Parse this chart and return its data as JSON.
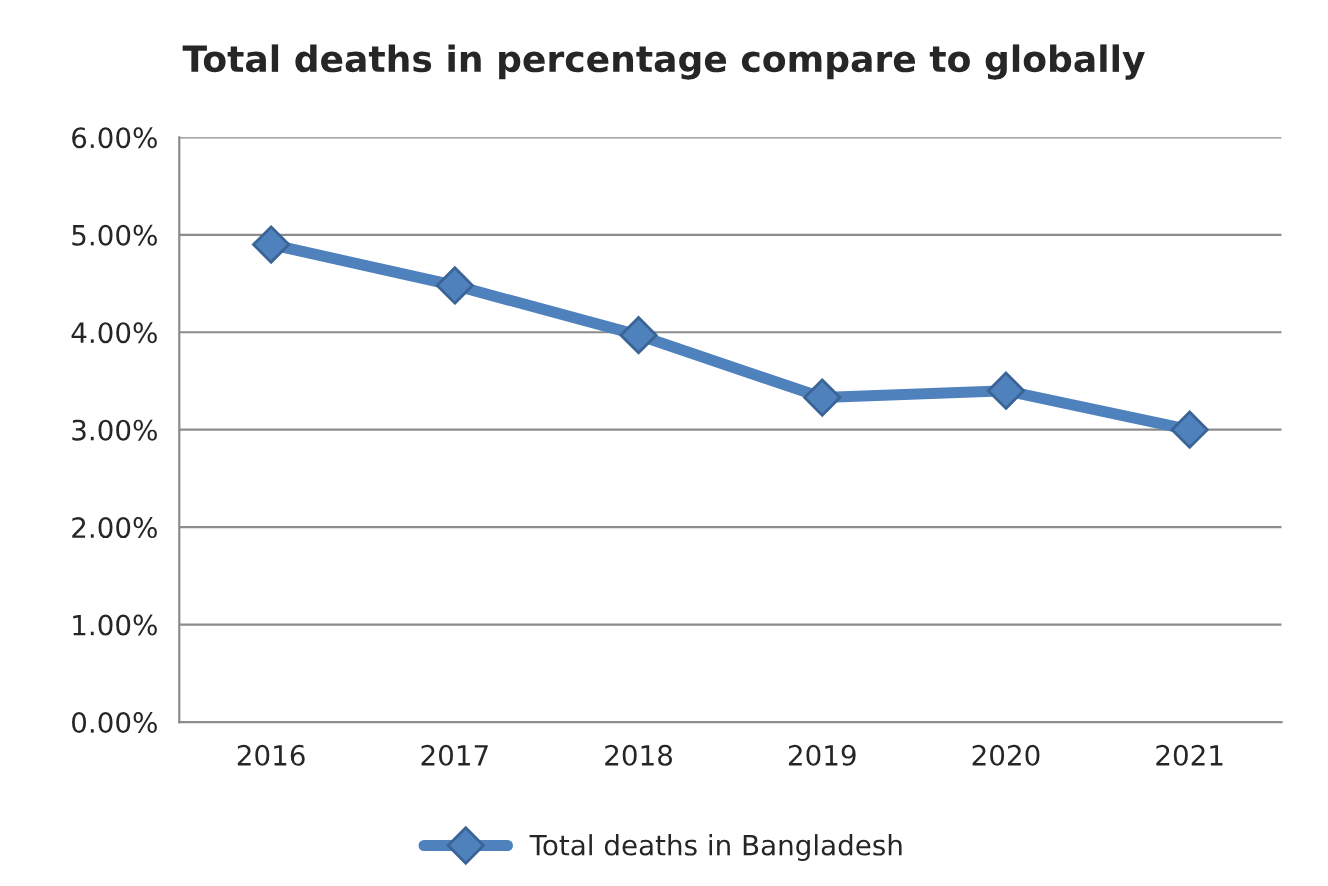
{
  "chart_data": {
    "type": "line",
    "title": "Total deaths in percentage compare to globally",
    "categories": [
      "2016",
      "2017",
      "2018",
      "2019",
      "2020",
      "2021"
    ],
    "series": [
      {
        "name": "Total deaths in Bangladesh",
        "color": "#4f81bd",
        "values": [
          4.9,
          4.48,
          3.97,
          3.33,
          3.4,
          3.0
        ]
      }
    ],
    "ylim": [
      0,
      6
    ],
    "yticks": [
      {
        "value": 0,
        "label": "0.00%"
      },
      {
        "value": 1,
        "label": "1.00%"
      },
      {
        "value": 2,
        "label": "2.00%"
      },
      {
        "value": 3,
        "label": "3.00%"
      },
      {
        "value": 4,
        "label": "4.00%"
      },
      {
        "value": 5,
        "label": "5.00%"
      },
      {
        "value": 6,
        "label": "6.00%"
      }
    ],
    "grid": "y",
    "legend": "bottom",
    "marker": "diamond",
    "line_style": "solid"
  }
}
